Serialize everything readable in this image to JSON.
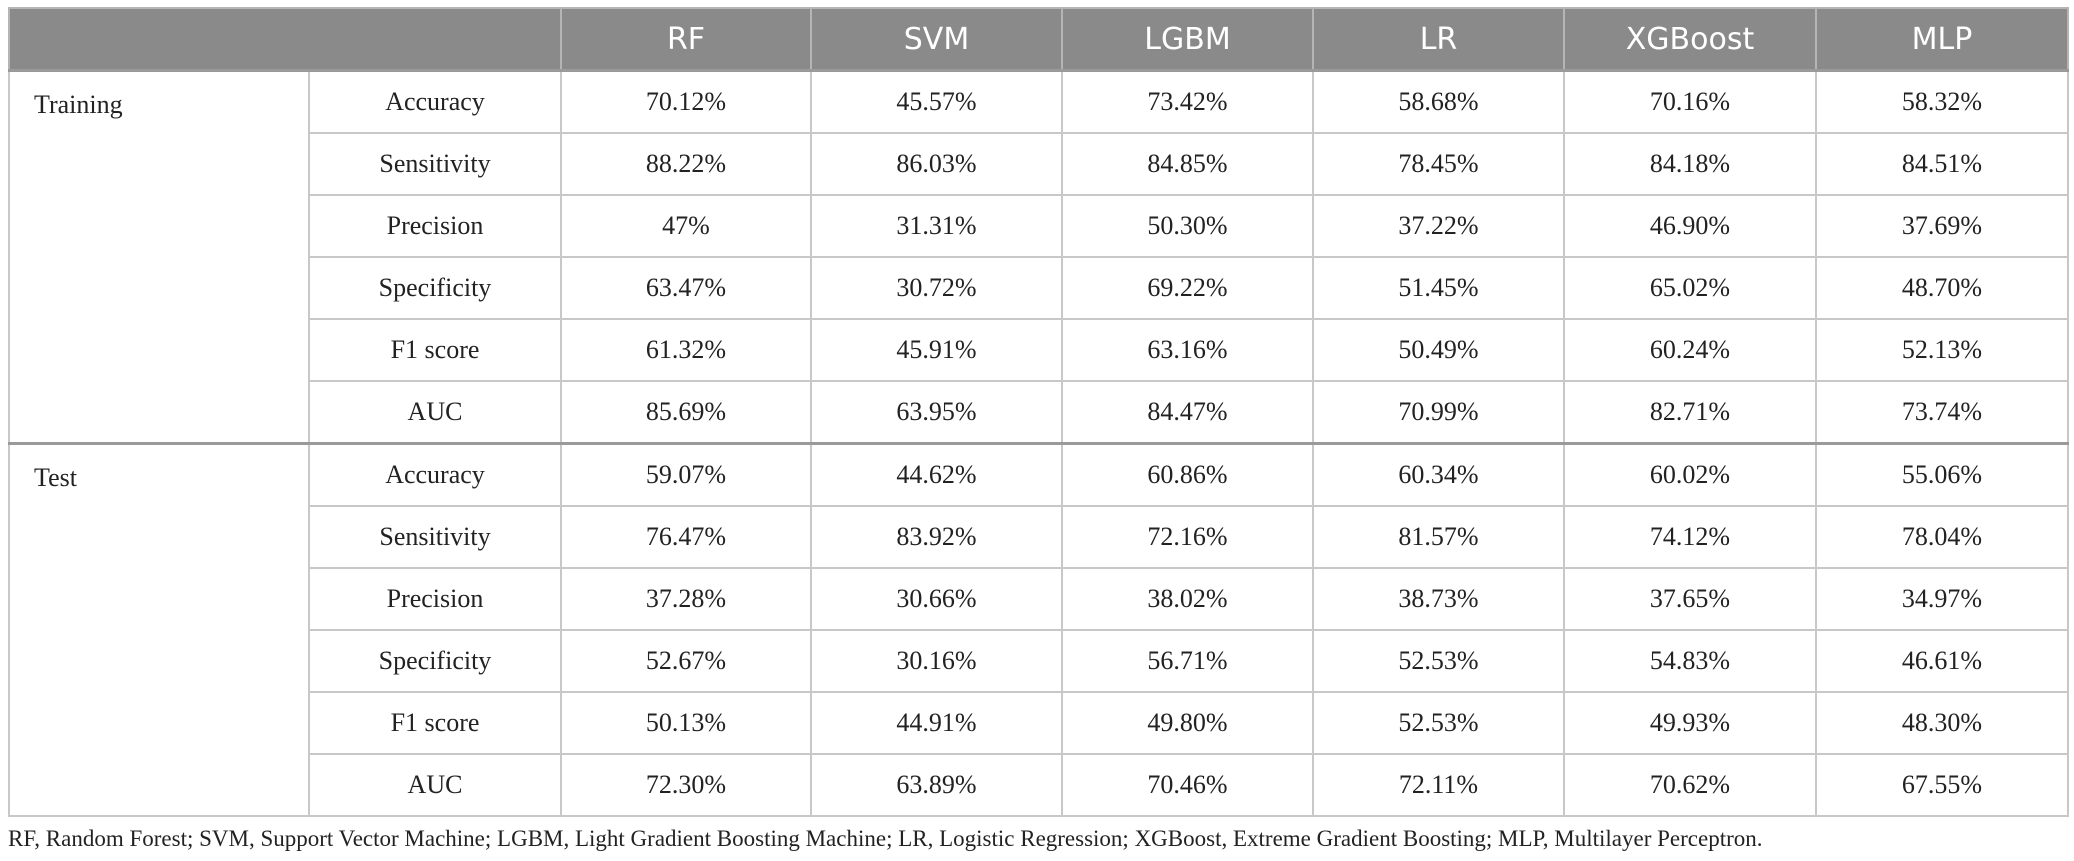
{
  "header": {
    "columns": [
      "RF",
      "SVM",
      "LGBM",
      "LR",
      "XGBoost",
      "MLP"
    ]
  },
  "groups": [
    {
      "label": "Training",
      "rows": [
        {
          "metric": "Accuracy",
          "values": [
            "70.12%",
            "45.57%",
            "73.42%",
            "58.68%",
            "70.16%",
            "58.32%"
          ]
        },
        {
          "metric": "Sensitivity",
          "values": [
            "88.22%",
            "86.03%",
            "84.85%",
            "78.45%",
            "84.18%",
            "84.51%"
          ]
        },
        {
          "metric": "Precision",
          "values": [
            "47%",
            "31.31%",
            "50.30%",
            "37.22%",
            "46.90%",
            "37.69%"
          ]
        },
        {
          "metric": "Specificity",
          "values": [
            "63.47%",
            "30.72%",
            "69.22%",
            "51.45%",
            "65.02%",
            "48.70%"
          ]
        },
        {
          "metric": "F1 score",
          "values": [
            "61.32%",
            "45.91%",
            "63.16%",
            "50.49%",
            "60.24%",
            "52.13%"
          ]
        },
        {
          "metric": "AUC",
          "values": [
            "85.69%",
            "63.95%",
            "84.47%",
            "70.99%",
            "82.71%",
            "73.74%"
          ]
        }
      ]
    },
    {
      "label": "Test",
      "rows": [
        {
          "metric": "Accuracy",
          "values": [
            "59.07%",
            "44.62%",
            "60.86%",
            "60.34%",
            "60.02%",
            "55.06%"
          ]
        },
        {
          "metric": "Sensitivity",
          "values": [
            "76.47%",
            "83.92%",
            "72.16%",
            "81.57%",
            "74.12%",
            "78.04%"
          ]
        },
        {
          "metric": "Precision",
          "values": [
            "37.28%",
            "30.66%",
            "38.02%",
            "38.73%",
            "37.65%",
            "34.97%"
          ]
        },
        {
          "metric": "Specificity",
          "values": [
            "52.67%",
            "30.16%",
            "56.71%",
            "52.53%",
            "54.83%",
            "46.61%"
          ]
        },
        {
          "metric": "F1 score",
          "values": [
            "50.13%",
            "44.91%",
            "49.80%",
            "52.53%",
            "49.93%",
            "48.30%"
          ]
        },
        {
          "metric": "AUC",
          "values": [
            "72.30%",
            "63.89%",
            "70.46%",
            "72.11%",
            "70.62%",
            "67.55%"
          ]
        }
      ]
    }
  ],
  "footnote": "RF, Random Forest; SVM, Support Vector Machine; LGBM, Light Gradient Boosting Machine; LR, Logistic Regression; XGBoost, Extreme Gradient Boosting; MLP, Multilayer Perceptron."
}
